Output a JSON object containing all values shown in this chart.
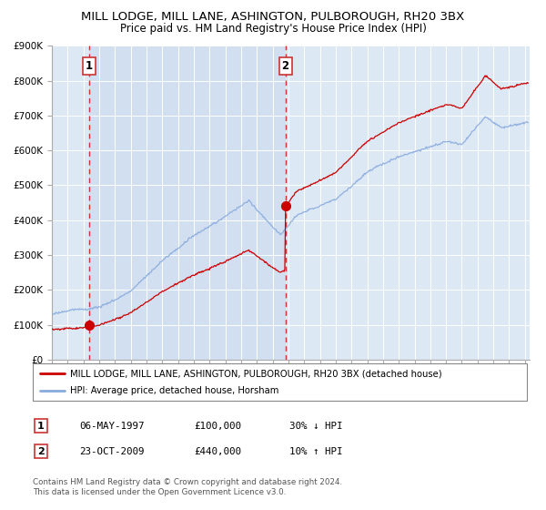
{
  "title": "MILL LODGE, MILL LANE, ASHINGTON, PULBOROUGH, RH20 3BX",
  "subtitle": "Price paid vs. HM Land Registry's House Price Index (HPI)",
  "ylim": [
    0,
    900000
  ],
  "yticks": [
    0,
    100000,
    200000,
    300000,
    400000,
    500000,
    600000,
    700000,
    800000,
    900000
  ],
  "ytick_labels": [
    "£0",
    "£100K",
    "£200K",
    "£300K",
    "£400K",
    "£500K",
    "£600K",
    "£700K",
    "£800K",
    "£900K"
  ],
  "xlim_start": 1995.0,
  "xlim_end": 2025.3,
  "sale1_x": 1997.35,
  "sale1_y": 100000,
  "sale2_x": 2009.81,
  "sale2_y": 440000,
  "line_color_red": "#cc0000",
  "line_color_blue": "#88aadd",
  "dashed_color": "#cc3333",
  "bg_color": "#dde8f5",
  "shade_color": "#dde8f5",
  "grid_color": "#ffffff",
  "legend_label_red": "MILL LODGE, MILL LANE, ASHINGTON, PULBOROUGH, RH20 3BX (detached house)",
  "legend_label_blue": "HPI: Average price, detached house, Horsham",
  "table_row1": [
    "1",
    "06-MAY-1997",
    "£100,000",
    "30% ↓ HPI"
  ],
  "table_row2": [
    "2",
    "23-OCT-2009",
    "£440,000",
    "10% ↑ HPI"
  ],
  "footnote": "Contains HM Land Registry data © Crown copyright and database right 2024.\nThis data is licensed under the Open Government Licence v3.0.",
  "title_fontsize": 9.5,
  "subtitle_fontsize": 8.5,
  "tick_fontsize": 7.5
}
